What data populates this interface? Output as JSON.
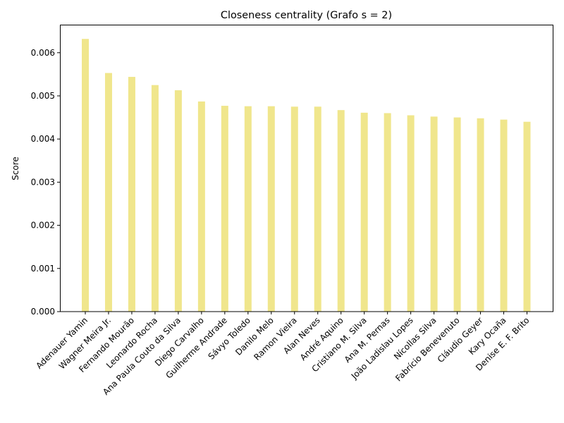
{
  "chart_data": {
    "type": "bar",
    "title": "Closeness centrality (Grafo s = 2)",
    "xlabel": "",
    "ylabel": "Score",
    "ylim": [
      0,
      0.00665
    ],
    "yticks": [
      "0.000",
      "0.001",
      "0.002",
      "0.003",
      "0.004",
      "0.005",
      "0.006"
    ],
    "ytick_values": [
      0,
      0.001,
      0.002,
      0.003,
      0.004,
      0.005,
      0.006
    ],
    "bar_color": "#f0e68c",
    "grid": false,
    "categories": [
      "Adenauer Yamin",
      "Wagner Meira Jr.",
      "Fernando Mourão",
      "Leonardo Rocha",
      "Ana Paula Couto da Silva",
      "Diego Carvalho",
      "Guilherme Andrade",
      "Sávyo Toledo",
      "Danilo Melo",
      "Ramon Vieira",
      "Alan Neves",
      "André Aquino",
      "Cristiano M. Silva",
      "Ana M. Pernas",
      "João Ladislau Lopes",
      "Nícollas Silva",
      "Fabrício Benevenuto",
      "Cláudio Geyer",
      "Kary Ocaña",
      "Denise E. F. Brito"
    ],
    "values": [
      0.00632,
      0.00553,
      0.00544,
      0.00525,
      0.00513,
      0.00487,
      0.00477,
      0.00476,
      0.00476,
      0.00475,
      0.00475,
      0.00467,
      0.00461,
      0.0046,
      0.00455,
      0.00452,
      0.0045,
      0.00448,
      0.00445,
      0.0044
    ]
  }
}
